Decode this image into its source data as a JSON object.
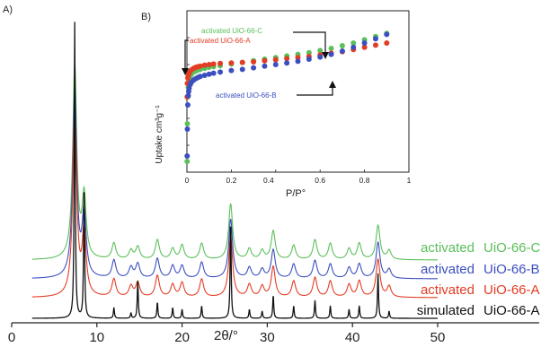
{
  "chart_data": [
    {
      "panel": "A)",
      "type": "line",
      "xlabel": "2θ/°",
      "xlim": [
        0,
        50
      ],
      "xticks": [
        0,
        10,
        20,
        30,
        40,
        50
      ],
      "peaks_2theta": [
        7.4,
        8.5,
        12.0,
        14.0,
        14.8,
        17.1,
        18.9,
        20.0,
        22.3,
        25.7,
        27.9,
        29.4,
        30.7,
        33.1,
        35.6,
        37.4,
        39.6,
        40.8,
        43.0,
        44.3
      ],
      "series": [
        {
          "label_prefix": "activated",
          "name": "UiO-66-C",
          "color": "#5bbf5b",
          "peak_heights": [
            215,
            68,
            18,
            10,
            14,
            22,
            12,
            16,
            18,
            62,
            12,
            10,
            32,
            16,
            22,
            18,
            12,
            18,
            38,
            10
          ]
        },
        {
          "label_prefix": "activated",
          "name": "UiO-66-B",
          "color": "#3c4fbf",
          "peak_heights": [
            210,
            70,
            20,
            12,
            16,
            22,
            14,
            14,
            18,
            66,
            12,
            10,
            32,
            16,
            20,
            16,
            12,
            16,
            40,
            10
          ]
        },
        {
          "label_prefix": "activated",
          "name": "UiO-66-A",
          "color": "#e23c24",
          "peak_heights": [
            205,
            70,
            20,
            12,
            16,
            24,
            14,
            16,
            20,
            68,
            14,
            12,
            34,
            18,
            22,
            18,
            14,
            18,
            42,
            12
          ]
        },
        {
          "label_prefix": "simulated",
          "name": "UiO-66-A",
          "color": "#111111",
          "peak_heights": [
            330,
            150,
            12,
            6,
            42,
            18,
            12,
            10,
            14,
            110,
            10,
            8,
            26,
            14,
            20,
            14,
            10,
            14,
            50,
            8
          ]
        }
      ]
    },
    {
      "panel": "B)",
      "type": "scatter",
      "xlabel": "P/P°",
      "ylabel": "Uptake cm³g⁻¹",
      "xlim": [
        0,
        1
      ],
      "ylim": [
        0,
        300
      ],
      "xticks": [
        0,
        0.2,
        0.4,
        0.6,
        0.8,
        1
      ],
      "xtick_labels": [
        "0",
        "0.2",
        "0.4",
        "0.6",
        "0.8",
        "1"
      ],
      "yticks": [
        0,
        50,
        100,
        150,
        200,
        250,
        300
      ],
      "series": [
        {
          "name": "activated UiO-66-C",
          "color": "#5bbf5b",
          "x": [
            0.001,
            0.002,
            0.004,
            0.006,
            0.008,
            0.01,
            0.015,
            0.02,
            0.03,
            0.04,
            0.05,
            0.06,
            0.08,
            0.1,
            0.12,
            0.15,
            0.2,
            0.25,
            0.3,
            0.35,
            0.4,
            0.45,
            0.5,
            0.55,
            0.6,
            0.65,
            0.7,
            0.75,
            0.8,
            0.85,
            0.9
          ],
          "y": [
            20,
            90,
            140,
            158,
            166,
            172,
            178,
            182,
            186,
            188,
            190,
            191,
            193,
            195,
            196,
            198,
            201,
            204,
            207,
            210,
            213,
            216,
            219,
            222,
            226,
            230,
            235,
            240,
            246,
            252,
            258
          ]
        },
        {
          "name": "activated UiO-66-A",
          "color": "#e23c24",
          "x": [
            0.001,
            0.002,
            0.004,
            0.006,
            0.008,
            0.01,
            0.015,
            0.02,
            0.03,
            0.04,
            0.05,
            0.06,
            0.08,
            0.1,
            0.12,
            0.15,
            0.2,
            0.25,
            0.3,
            0.35,
            0.4,
            0.45,
            0.5,
            0.55,
            0.6,
            0.65,
            0.7,
            0.75,
            0.8,
            0.85,
            0.9
          ],
          "y": [
            140,
            165,
            175,
            180,
            183,
            185,
            188,
            190,
            193,
            195,
            196,
            197,
            199,
            200,
            201,
            202,
            203,
            204,
            205,
            207,
            209,
            211,
            213,
            215,
            218,
            221,
            224,
            228,
            232,
            236,
            240
          ]
        },
        {
          "name": "activated UiO-66-B",
          "color": "#3c4fbf",
          "x": [
            0.001,
            0.002,
            0.004,
            0.006,
            0.008,
            0.01,
            0.015,
            0.02,
            0.03,
            0.04,
            0.05,
            0.06,
            0.08,
            0.1,
            0.12,
            0.15,
            0.2,
            0.25,
            0.3,
            0.35,
            0.4,
            0.45,
            0.5,
            0.55,
            0.6,
            0.65,
            0.7,
            0.75,
            0.8,
            0.85,
            0.9
          ],
          "y": [
            30,
            80,
            125,
            142,
            150,
            156,
            163,
            167,
            171,
            174,
            176,
            178,
            180,
            182,
            184,
            186,
            189,
            191,
            194,
            197,
            200,
            203,
            206,
            210,
            214,
            219,
            225,
            232,
            240,
            248,
            256
          ]
        }
      ],
      "annotations": [
        "activated UiO-66-C",
        "activated UiO-66-A",
        "activated UiO-66-B"
      ]
    }
  ]
}
